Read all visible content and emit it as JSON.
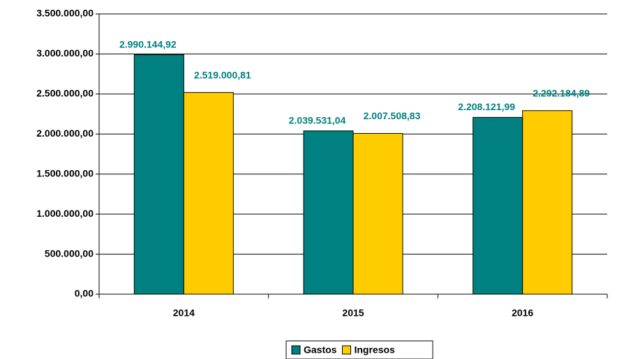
{
  "chart_data": {
    "type": "bar",
    "categories": [
      "2014",
      "2015",
      "2016"
    ],
    "series": [
      {
        "name": "Gastos",
        "color": "#008080",
        "values": [
          2990144.92,
          2039531.04,
          2208121.99
        ],
        "value_labels": [
          "2.990.144,92",
          "2.039.531,04",
          "2.208.121,99"
        ]
      },
      {
        "name": "Ingresos",
        "color": "#ffcc00",
        "values": [
          2519000.81,
          2007508.83,
          2292184.89
        ],
        "value_labels": [
          "2.519.000,81",
          "2.007.508,83",
          "2.292.184,89"
        ]
      }
    ],
    "ylim": [
      0,
      3500000
    ],
    "yticks": [
      {
        "value": 0,
        "label": "0,00"
      },
      {
        "value": 500000,
        "label": "500.000,00"
      },
      {
        "value": 1000000,
        "label": "1.000.000,00"
      },
      {
        "value": 1500000,
        "label": "1.500.000,00"
      },
      {
        "value": 2000000,
        "label": "2.000.000,00"
      },
      {
        "value": 2500000,
        "label": "2.500.000,00"
      },
      {
        "value": 3000000,
        "label": "3.000.000,00"
      },
      {
        "value": 3500000,
        "label": "3.500.000,00"
      }
    ],
    "grid": true,
    "legend": "bottom"
  }
}
